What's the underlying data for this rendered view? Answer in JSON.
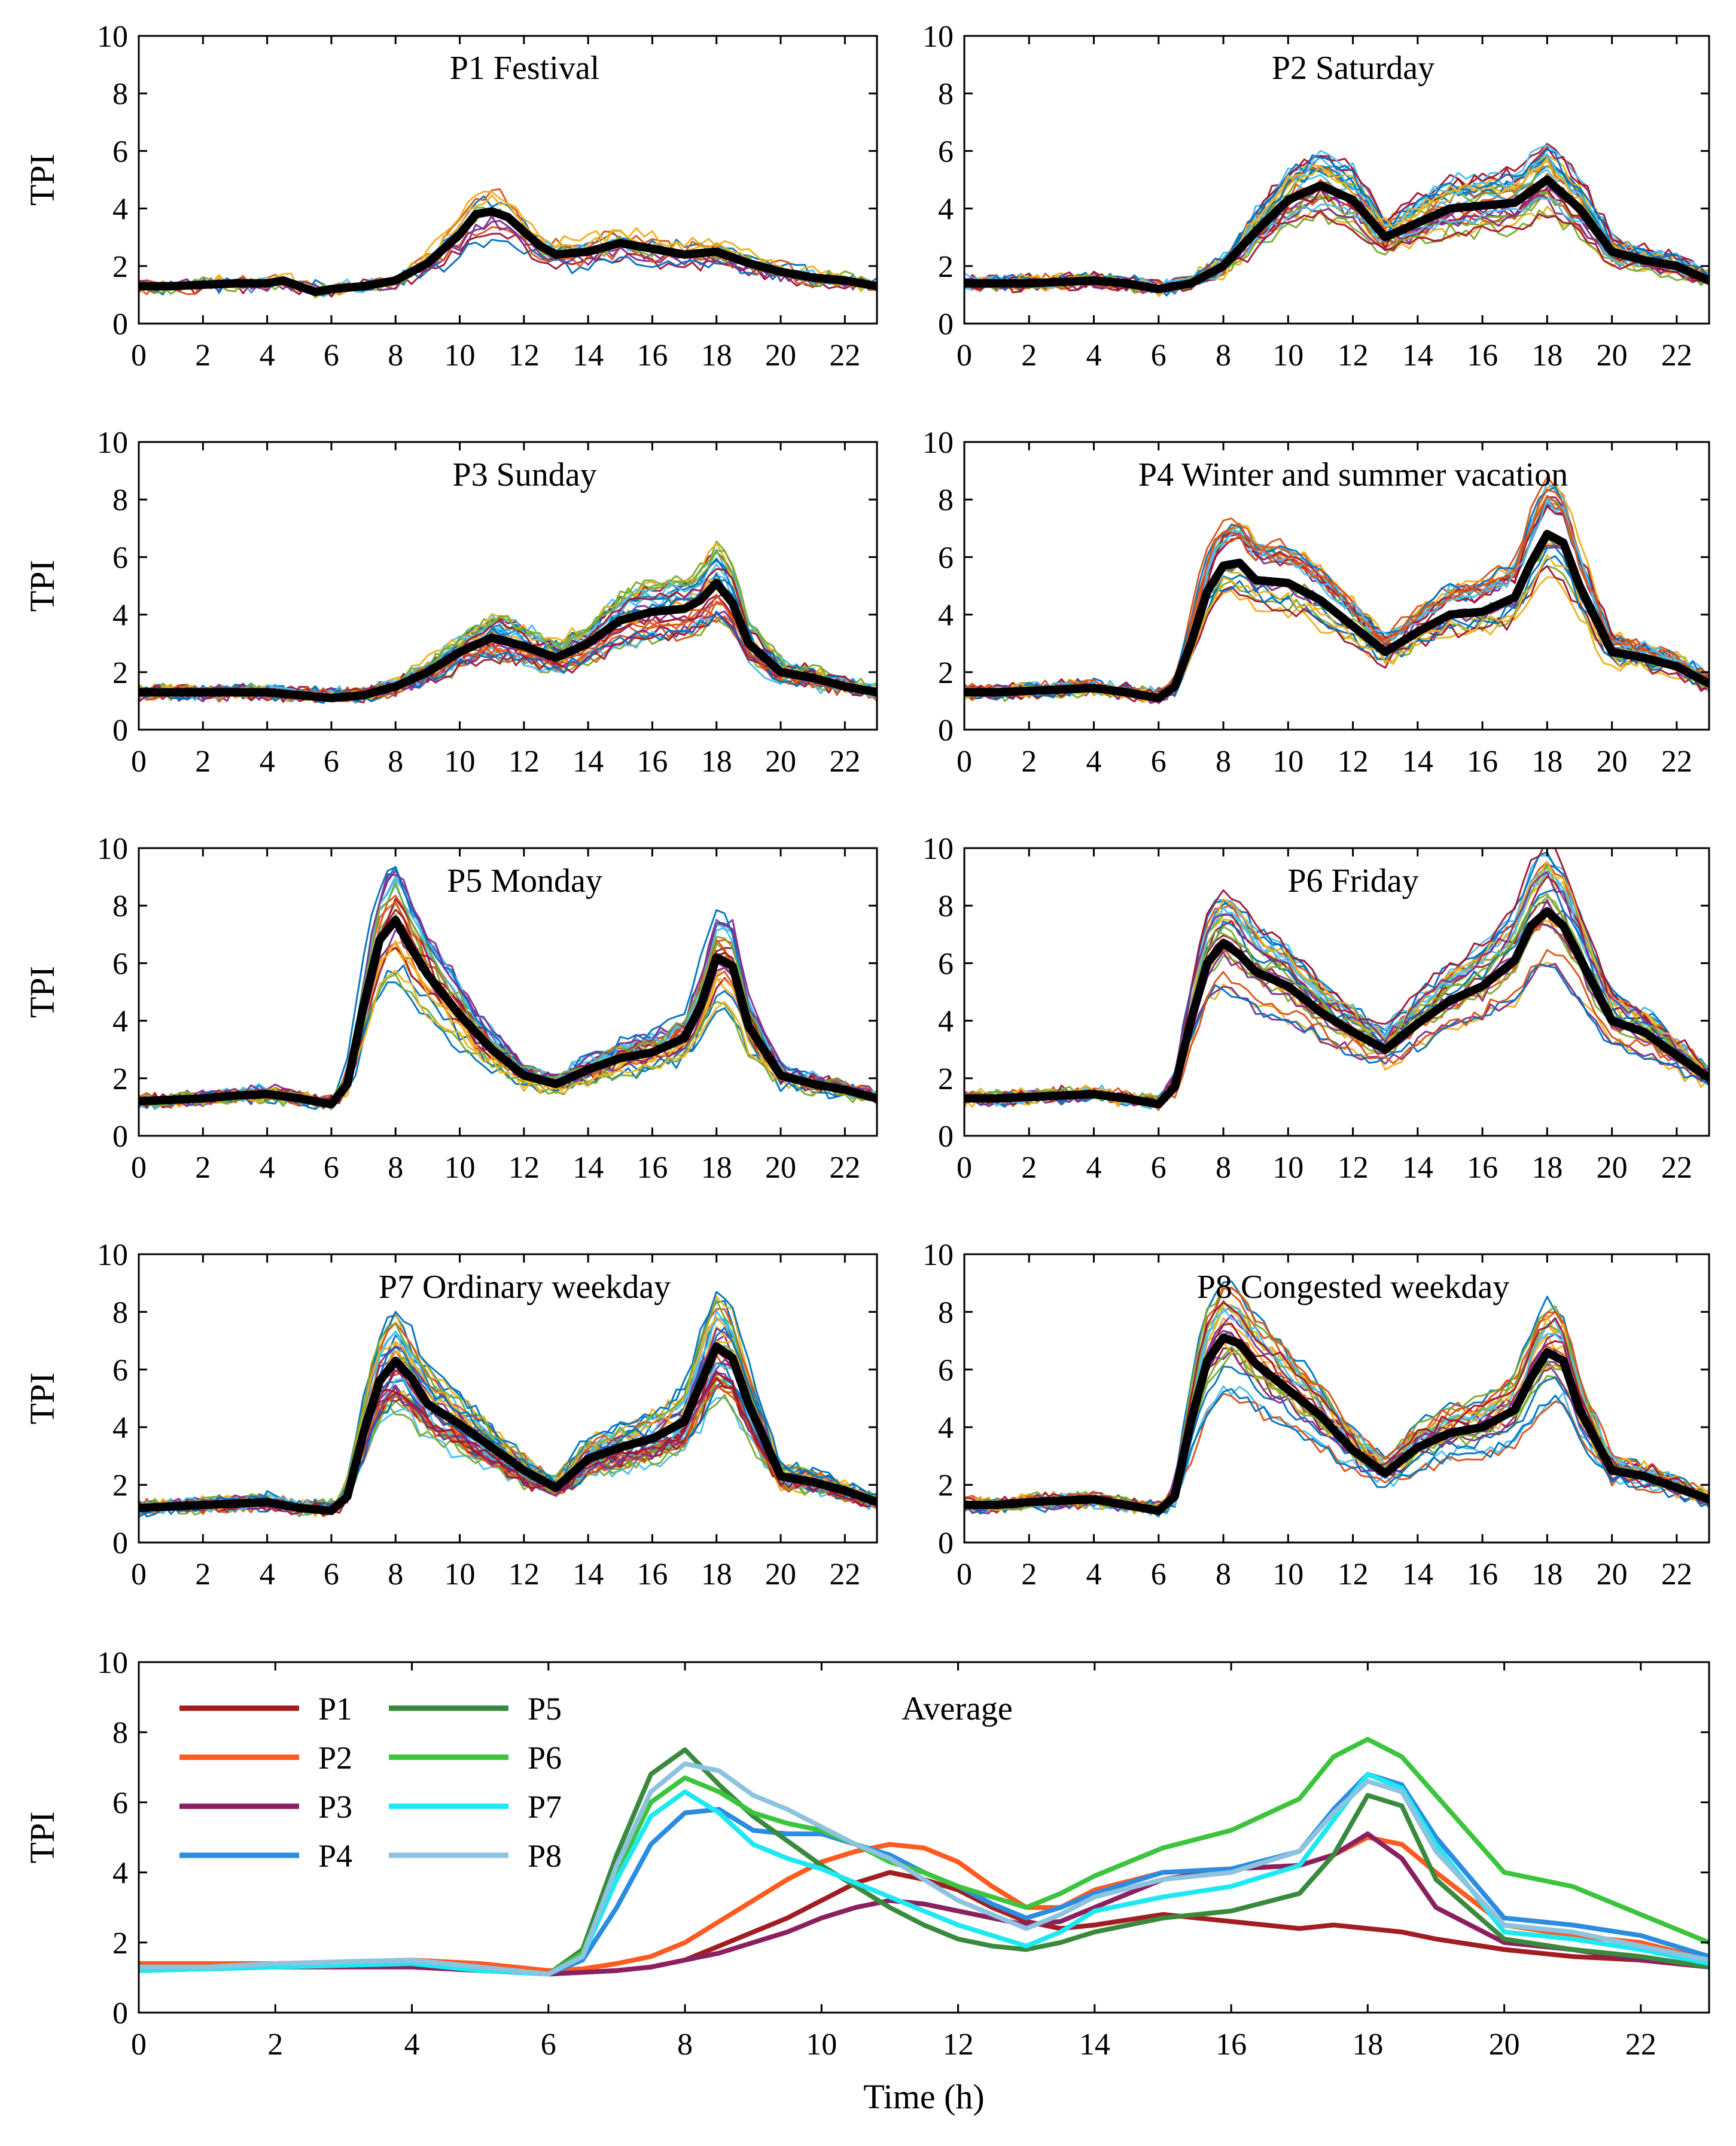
{
  "figure": {
    "ylabel": "TPI",
    "xlabel": "Time (h)"
  },
  "chart_data": [
    {
      "type": "line",
      "id": "p1",
      "title": "P1 Festival",
      "xlim": [
        0,
        23
      ],
      "ylim": [
        0,
        10
      ],
      "xticks": [
        0,
        2,
        4,
        6,
        8,
        10,
        12,
        14,
        16,
        18,
        20,
        22
      ],
      "yticks": [
        0,
        2,
        4,
        6,
        8,
        10
      ],
      "ylabel": "TPI",
      "average": {
        "x": [
          0,
          1,
          2,
          3,
          4,
          4.5,
          5,
          5.5,
          6,
          7,
          8,
          9,
          10,
          10.5,
          11,
          11.5,
          12,
          12.5,
          13,
          14,
          15,
          16,
          17,
          18,
          19,
          20,
          21,
          22,
          23
        ],
        "y": [
          1.3,
          1.3,
          1.35,
          1.4,
          1.4,
          1.5,
          1.3,
          1.1,
          1.2,
          1.3,
          1.5,
          2.1,
          3.1,
          3.8,
          3.9,
          3.7,
          3.2,
          2.7,
          2.4,
          2.5,
          2.8,
          2.6,
          2.4,
          2.5,
          2.1,
          1.8,
          1.6,
          1.5,
          1.3
        ]
      }
    },
    {
      "type": "line",
      "id": "p2",
      "title": "P2 Saturday",
      "xlim": [
        0,
        23
      ],
      "ylim": [
        0,
        10
      ],
      "xticks": [
        0,
        2,
        4,
        6,
        8,
        10,
        12,
        14,
        16,
        18,
        20,
        22
      ],
      "yticks": [
        0,
        2,
        4,
        6,
        8,
        10
      ],
      "average": {
        "x": [
          0,
          1,
          2,
          3,
          4,
          5,
          6,
          7,
          8,
          9,
          10,
          11,
          12,
          13,
          14,
          15,
          16,
          17,
          18,
          19,
          20,
          21,
          22,
          23
        ],
        "y": [
          1.4,
          1.4,
          1.4,
          1.45,
          1.5,
          1.4,
          1.2,
          1.4,
          2.0,
          3.2,
          4.3,
          4.8,
          4.3,
          3.0,
          3.5,
          4.0,
          4.1,
          4.2,
          5.0,
          4.0,
          2.5,
          2.2,
          2.0,
          1.5
        ]
      }
    },
    {
      "type": "line",
      "id": "p3",
      "title": "P3 Sunday",
      "xlim": [
        0,
        23
      ],
      "ylim": [
        0,
        10
      ],
      "xticks": [
        0,
        2,
        4,
        6,
        8,
        10,
        12,
        14,
        16,
        18,
        20,
        22
      ],
      "yticks": [
        0,
        2,
        4,
        6,
        8,
        10
      ],
      "ylabel": "TPI",
      "average": {
        "x": [
          0,
          1,
          2,
          3,
          4,
          5,
          6,
          7,
          8,
          9,
          10,
          11,
          12,
          13,
          14,
          15,
          16,
          17,
          17.5,
          18,
          18.5,
          19,
          20,
          21,
          22,
          23
        ],
        "y": [
          1.3,
          1.3,
          1.3,
          1.3,
          1.3,
          1.2,
          1.1,
          1.2,
          1.5,
          2.0,
          2.7,
          3.2,
          2.9,
          2.5,
          3.0,
          3.8,
          4.1,
          4.2,
          4.5,
          5.1,
          4.4,
          3.0,
          2.0,
          1.8,
          1.5,
          1.3
        ]
      }
    },
    {
      "type": "line",
      "id": "p4",
      "title": "P4 Winter and summer vacation",
      "xlim": [
        0,
        23
      ],
      "ylim": [
        0,
        10
      ],
      "xticks": [
        0,
        2,
        4,
        6,
        8,
        10,
        12,
        14,
        16,
        18,
        20,
        22
      ],
      "yticks": [
        0,
        2,
        4,
        6,
        8,
        10
      ],
      "average": {
        "x": [
          0,
          1,
          2,
          3,
          4,
          5,
          6,
          6.5,
          7,
          7.5,
          8,
          8.5,
          9,
          10,
          11,
          12,
          13,
          14,
          15,
          16,
          17,
          17.5,
          18,
          18.5,
          19,
          20,
          21,
          22,
          23
        ],
        "y": [
          1.3,
          1.3,
          1.35,
          1.4,
          1.45,
          1.3,
          1.1,
          1.5,
          3.0,
          4.8,
          5.7,
          5.8,
          5.2,
          5.1,
          4.5,
          3.6,
          2.7,
          3.4,
          4.0,
          4.1,
          4.6,
          5.8,
          6.8,
          6.5,
          5.0,
          2.7,
          2.5,
          2.2,
          1.6
        ]
      }
    },
    {
      "type": "line",
      "id": "p5",
      "title": "P5 Monday",
      "xlim": [
        0,
        23
      ],
      "ylim": [
        0,
        10
      ],
      "xticks": [
        0,
        2,
        4,
        6,
        8,
        10,
        12,
        14,
        16,
        18,
        20,
        22
      ],
      "yticks": [
        0,
        2,
        4,
        6,
        8,
        10
      ],
      "ylabel": "TPI",
      "average": {
        "x": [
          0,
          1,
          2,
          3,
          4,
          5,
          6,
          6.5,
          7,
          7.5,
          8,
          8.5,
          9,
          10,
          11,
          12,
          13,
          14,
          15,
          16,
          17,
          17.5,
          18,
          18.5,
          19,
          20,
          21,
          22,
          23
        ],
        "y": [
          1.2,
          1.25,
          1.3,
          1.4,
          1.45,
          1.3,
          1.1,
          1.8,
          4.5,
          6.8,
          7.5,
          6.5,
          5.6,
          4.2,
          3.0,
          2.1,
          1.8,
          2.3,
          2.7,
          2.9,
          3.4,
          4.5,
          6.2,
          5.9,
          3.8,
          2.1,
          1.8,
          1.6,
          1.3
        ]
      }
    },
    {
      "type": "line",
      "id": "p6",
      "title": "P6 Friday",
      "xlim": [
        0,
        23
      ],
      "ylim": [
        0,
        10
      ],
      "xticks": [
        0,
        2,
        4,
        6,
        8,
        10,
        12,
        14,
        16,
        18,
        20,
        22
      ],
      "yticks": [
        0,
        2,
        4,
        6,
        8,
        10
      ],
      "average": {
        "x": [
          0,
          1,
          2,
          3,
          4,
          5,
          6,
          6.5,
          7,
          7.5,
          8,
          8.5,
          9,
          10,
          11,
          12,
          13,
          14,
          15,
          16,
          17,
          17.5,
          18,
          18.5,
          19,
          20,
          21,
          22,
          23
        ],
        "y": [
          1.3,
          1.3,
          1.35,
          1.4,
          1.45,
          1.3,
          1.1,
          1.7,
          4.0,
          6.0,
          6.7,
          6.3,
          5.7,
          5.2,
          4.3,
          3.6,
          3.0,
          3.9,
          4.7,
          5.2,
          6.1,
          7.3,
          7.8,
          7.3,
          6.2,
          4.0,
          3.6,
          2.8,
          2.0
        ]
      }
    },
    {
      "type": "line",
      "id": "p7",
      "title": "P7 Ordinary weekday",
      "xlim": [
        0,
        23
      ],
      "ylim": [
        0,
        10
      ],
      "xticks": [
        0,
        2,
        4,
        6,
        8,
        10,
        12,
        14,
        16,
        18,
        20,
        22
      ],
      "yticks": [
        0,
        2,
        4,
        6,
        8,
        10
      ],
      "ylabel": "TPI",
      "average": {
        "x": [
          0,
          1,
          2,
          3,
          4,
          5,
          6,
          6.5,
          7,
          7.5,
          8,
          8.5,
          9,
          10,
          11,
          12,
          13,
          14,
          15,
          16,
          17,
          17.5,
          18,
          18.5,
          19,
          20,
          21,
          22,
          23
        ],
        "y": [
          1.2,
          1.25,
          1.3,
          1.35,
          1.4,
          1.2,
          1.1,
          1.6,
          3.8,
          5.6,
          6.3,
          5.7,
          4.8,
          4.1,
          3.3,
          2.5,
          1.9,
          2.9,
          3.3,
          3.6,
          4.2,
          5.5,
          6.8,
          6.4,
          4.8,
          2.3,
          2.1,
          1.8,
          1.4
        ]
      }
    },
    {
      "type": "line",
      "id": "p8",
      "title": "P8 Congested weekday",
      "xlim": [
        0,
        23
      ],
      "ylim": [
        0,
        10
      ],
      "xticks": [
        0,
        2,
        4,
        6,
        8,
        10,
        12,
        14,
        16,
        18,
        20,
        22
      ],
      "yticks": [
        0,
        2,
        4,
        6,
        8,
        10
      ],
      "average": {
        "x": [
          0,
          1,
          2,
          3,
          4,
          5,
          6,
          6.5,
          7,
          7.5,
          8,
          8.5,
          9,
          10,
          11,
          12,
          13,
          14,
          15,
          16,
          17,
          17.5,
          18,
          18.5,
          19,
          20,
          21,
          22,
          23
        ],
        "y": [
          1.3,
          1.3,
          1.4,
          1.45,
          1.5,
          1.3,
          1.1,
          1.6,
          4.2,
          6.3,
          7.1,
          6.9,
          6.2,
          5.3,
          4.4,
          3.2,
          2.4,
          3.3,
          3.8,
          4.0,
          4.6,
          5.7,
          6.6,
          6.3,
          4.6,
          2.5,
          2.3,
          1.9,
          1.5
        ]
      }
    },
    {
      "type": "line",
      "id": "avg",
      "title": "Average",
      "xlabel": "Time (h)",
      "ylabel": "TPI",
      "xlim": [
        0,
        23
      ],
      "ylim": [
        0,
        10
      ],
      "xticks": [
        0,
        2,
        4,
        6,
        8,
        10,
        12,
        14,
        16,
        18,
        20,
        22
      ],
      "yticks": [
        0,
        2,
        4,
        6,
        8,
        10
      ],
      "x": [
        0,
        1,
        2,
        3,
        4,
        5,
        6,
        6.5,
        7,
        7.5,
        8,
        8.5,
        9,
        9.5,
        10,
        10.5,
        11,
        11.5,
        12,
        12.5,
        13,
        13.5,
        14,
        15,
        16,
        17,
        17.5,
        18,
        18.5,
        19,
        20,
        21,
        22,
        23
      ],
      "series": [
        {
          "name": "P1",
          "color": "#a11d21",
          "values": [
            1.3,
            1.3,
            1.35,
            1.4,
            1.4,
            1.3,
            1.1,
            1.15,
            1.2,
            1.3,
            1.5,
            1.9,
            2.3,
            2.7,
            3.2,
            3.7,
            4.0,
            3.8,
            3.5,
            3.0,
            2.6,
            2.4,
            2.5,
            2.8,
            2.6,
            2.4,
            2.5,
            2.4,
            2.3,
            2.1,
            1.8,
            1.6,
            1.5,
            1.3
          ]
        },
        {
          "name": "P2",
          "color": "#ff5a1f",
          "values": [
            1.4,
            1.4,
            1.4,
            1.45,
            1.5,
            1.4,
            1.2,
            1.25,
            1.4,
            1.6,
            2.0,
            2.6,
            3.2,
            3.8,
            4.3,
            4.6,
            4.8,
            4.7,
            4.3,
            3.6,
            3.0,
            3.0,
            3.5,
            4.0,
            4.1,
            4.2,
            4.5,
            5.0,
            4.8,
            4.0,
            2.5,
            2.2,
            2.0,
            1.5
          ]
        },
        {
          "name": "P3",
          "color": "#8b2060",
          "values": [
            1.3,
            1.3,
            1.3,
            1.3,
            1.3,
            1.2,
            1.1,
            1.15,
            1.2,
            1.3,
            1.5,
            1.7,
            2.0,
            2.3,
            2.7,
            3.0,
            3.2,
            3.1,
            2.9,
            2.7,
            2.5,
            2.6,
            3.0,
            3.8,
            4.1,
            4.2,
            4.5,
            5.1,
            4.4,
            3.0,
            2.0,
            1.8,
            1.5,
            1.3
          ]
        },
        {
          "name": "P4",
          "color": "#2b8ce0",
          "values": [
            1.3,
            1.3,
            1.35,
            1.4,
            1.45,
            1.3,
            1.1,
            1.5,
            3.0,
            4.8,
            5.7,
            5.8,
            5.2,
            5.1,
            5.1,
            4.8,
            4.5,
            4.0,
            3.6,
            3.1,
            2.7,
            3.0,
            3.4,
            4.0,
            4.1,
            4.6,
            5.8,
            6.8,
            6.5,
            5.0,
            2.7,
            2.5,
            2.2,
            1.6
          ]
        },
        {
          "name": "P5",
          "color": "#3a8a3e",
          "values": [
            1.2,
            1.25,
            1.3,
            1.4,
            1.45,
            1.3,
            1.1,
            1.8,
            4.5,
            6.8,
            7.5,
            6.5,
            5.6,
            4.9,
            4.2,
            3.6,
            3.0,
            2.5,
            2.1,
            1.9,
            1.8,
            2.0,
            2.3,
            2.7,
            2.9,
            3.4,
            4.5,
            6.2,
            5.9,
            3.8,
            2.1,
            1.8,
            1.6,
            1.3
          ]
        },
        {
          "name": "P6",
          "color": "#3cc43c",
          "values": [
            1.3,
            1.3,
            1.35,
            1.4,
            1.45,
            1.3,
            1.1,
            1.7,
            4.0,
            6.0,
            6.7,
            6.3,
            5.7,
            5.4,
            5.2,
            4.8,
            4.3,
            4.0,
            3.6,
            3.3,
            3.0,
            3.4,
            3.9,
            4.7,
            5.2,
            6.1,
            7.3,
            7.8,
            7.3,
            6.2,
            4.0,
            3.6,
            2.8,
            2.0
          ]
        },
        {
          "name": "P7",
          "color": "#1ee8f2",
          "values": [
            1.2,
            1.25,
            1.3,
            1.35,
            1.4,
            1.2,
            1.1,
            1.6,
            3.8,
            5.6,
            6.3,
            5.7,
            4.8,
            4.4,
            4.1,
            3.7,
            3.3,
            2.9,
            2.5,
            2.2,
            1.9,
            2.3,
            2.9,
            3.3,
            3.6,
            4.2,
            5.5,
            6.8,
            6.4,
            4.8,
            2.3,
            2.1,
            1.8,
            1.4
          ]
        },
        {
          "name": "P8",
          "color": "#8ec3e0",
          "values": [
            1.3,
            1.3,
            1.4,
            1.45,
            1.5,
            1.3,
            1.1,
            1.6,
            4.2,
            6.3,
            7.1,
            6.9,
            6.2,
            5.8,
            5.3,
            4.8,
            4.4,
            3.8,
            3.2,
            2.8,
            2.4,
            2.8,
            3.3,
            3.8,
            4.0,
            4.6,
            5.7,
            6.6,
            6.3,
            4.6,
            2.5,
            2.3,
            1.9,
            1.5
          ]
        }
      ],
      "legend": {
        "location": "top-left",
        "columns": 2
      }
    }
  ]
}
